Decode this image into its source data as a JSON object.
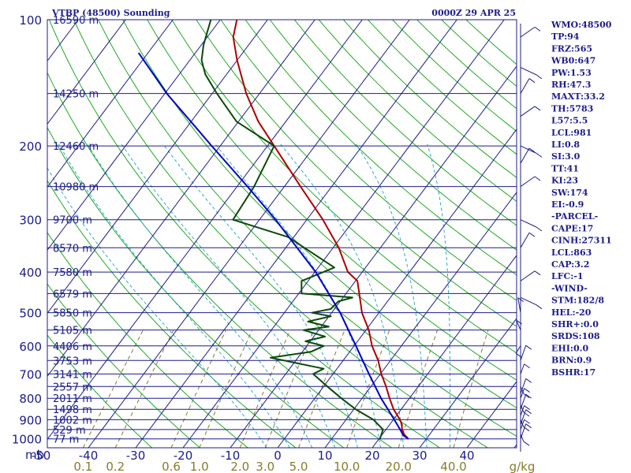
{
  "chart_data": {
    "type": "line",
    "title": "VTBP (48500) Sounding",
    "time": "0000Z 29 APR 25",
    "pressure_axis": {
      "unit": "mb",
      "ticks": [
        100,
        200,
        300,
        400,
        500,
        600,
        700,
        800,
        900,
        1000
      ],
      "range": [
        100,
        1050
      ],
      "scale": "log"
    },
    "height_labels": [
      {
        "text": "16590 m",
        "p": 100
      },
      {
        "text": "14250 m",
        "p": 150
      },
      {
        "text": "12460 m",
        "p": 200
      },
      {
        "text": "10980 m",
        "p": 250
      },
      {
        "text": "9700 m",
        "p": 300
      },
      {
        "text": "8570 m",
        "p": 350
      },
      {
        "text": "7580 m",
        "p": 400
      },
      {
        "text": "6579 m",
        "p": 450
      },
      {
        "text": "5850 m",
        "p": 500
      },
      {
        "text": "5105 m",
        "p": 550
      },
      {
        "text": "4406 m",
        "p": 600
      },
      {
        "text": "3753 m",
        "p": 650
      },
      {
        "text": "3141 m",
        "p": 700
      },
      {
        "text": "2557 m",
        "p": 750
      },
      {
        "text": "2011 m",
        "p": 800
      },
      {
        "text": "1498 m",
        "p": 850
      },
      {
        "text": "1002 m",
        "p": 900
      },
      {
        "text": "529 m",
        "p": 950
      },
      {
        "text": "77 m",
        "p": 1000
      }
    ],
    "temperature_axis": {
      "unit": "°C",
      "ticks": [
        -50,
        -40,
        -30,
        -20,
        -10,
        0,
        10,
        20,
        30,
        40
      ],
      "range": [
        -50,
        50
      ]
    },
    "mixing_ratio_axis": {
      "unit": "g/kg",
      "ticks": [
        "0.1",
        "0.2",
        "0.6",
        "1.0",
        "2.0",
        "3.0",
        "5.0",
        "10.0",
        "20.0",
        "40.0"
      ],
      "end_label": "g/kg"
    },
    "series": [
      {
        "name": "temperature",
        "color": "#b00000",
        "points": [
          {
            "p": 1000,
            "t": 26.2
          },
          {
            "p": 975,
            "t": 24.6
          },
          {
            "p": 950,
            "t": 23.4
          },
          {
            "p": 925,
            "t": 22.6
          },
          {
            "p": 900,
            "t": 21.4
          },
          {
            "p": 850,
            "t": 18.4
          },
          {
            "p": 800,
            "t": 15.8
          },
          {
            "p": 750,
            "t": 13.2
          },
          {
            "p": 700,
            "t": 10.2
          },
          {
            "p": 650,
            "t": 7.4
          },
          {
            "p": 600,
            "t": 3.8
          },
          {
            "p": 550,
            "t": 0.6
          },
          {
            "p": 500,
            "t": -3.6
          },
          {
            "p": 450,
            "t": -7.2
          },
          {
            "p": 420,
            "t": -9.6
          },
          {
            "p": 400,
            "t": -13.0
          },
          {
            "p": 350,
            "t": -18.8
          },
          {
            "p": 300,
            "t": -26.6
          },
          {
            "p": 250,
            "t": -36.6
          },
          {
            "p": 200,
            "t": -48.6
          },
          {
            "p": 175,
            "t": -55.8
          },
          {
            "p": 150,
            "t": -62.8
          },
          {
            "p": 125,
            "t": -70.0
          },
          {
            "p": 110,
            "t": -74.5
          },
          {
            "p": 100,
            "t": -76.5
          }
        ]
      },
      {
        "name": "dewpoint",
        "color": "#0a4a0a",
        "points": [
          {
            "p": 1000,
            "t": 20.2
          },
          {
            "p": 975,
            "t": 19.8
          },
          {
            "p": 950,
            "t": 19.4
          },
          {
            "p": 925,
            "t": 17.6
          },
          {
            "p": 900,
            "t": 15.8
          },
          {
            "p": 850,
            "t": 10.4
          },
          {
            "p": 800,
            "t": 5.6
          },
          {
            "p": 750,
            "t": 0.8
          },
          {
            "p": 700,
            "t": -4.2
          },
          {
            "p": 680,
            "t": -2.8
          },
          {
            "p": 640,
            "t": -15.8
          },
          {
            "p": 620,
            "t": -8.2
          },
          {
            "p": 600,
            "t": -6.4
          },
          {
            "p": 585,
            "t": -11.0
          },
          {
            "p": 570,
            "t": -7.6
          },
          {
            "p": 550,
            "t": -13.2
          },
          {
            "p": 540,
            "t": -8.4
          },
          {
            "p": 525,
            "t": -13.6
          },
          {
            "p": 510,
            "t": -9.6
          },
          {
            "p": 500,
            "t": -14.2
          },
          {
            "p": 490,
            "t": -10.8
          },
          {
            "p": 470,
            "t": -10.4
          },
          {
            "p": 460,
            "t": -8.0
          },
          {
            "p": 450,
            "t": -19.4
          },
          {
            "p": 420,
            "t": -21.4
          },
          {
            "p": 410,
            "t": -19.8
          },
          {
            "p": 390,
            "t": -16.6
          },
          {
            "p": 330,
            "t": -31.2
          },
          {
            "p": 300,
            "t": -45.6
          },
          {
            "p": 250,
            "t": -46.4
          },
          {
            "p": 200,
            "t": -48.6
          },
          {
            "p": 175,
            "t": -60.4
          },
          {
            "p": 150,
            "t": -69.0
          },
          {
            "p": 135,
            "t": -74.5
          },
          {
            "p": 125,
            "t": -77.5
          },
          {
            "p": 115,
            "t": -79.5
          },
          {
            "p": 100,
            "t": -82.0
          }
        ]
      },
      {
        "name": "parcel",
        "color": "#0000c8",
        "points": [
          {
            "p": 1000,
            "t": 26.2
          },
          {
            "p": 981,
            "t": 24.6
          },
          {
            "p": 950,
            "t": 23.0
          },
          {
            "p": 900,
            "t": 20.2
          },
          {
            "p": 850,
            "t": 17.2
          },
          {
            "p": 800,
            "t": 14.0
          },
          {
            "p": 700,
            "t": 7.6
          },
          {
            "p": 600,
            "t": 0.4
          },
          {
            "p": 500,
            "t": -8.2
          },
          {
            "p": 400,
            "t": -19.8
          },
          {
            "p": 300,
            "t": -36.6
          },
          {
            "p": 250,
            "t": -47.8
          },
          {
            "p": 200,
            "t": -61.8
          },
          {
            "p": 150,
            "t": -79.6
          },
          {
            "p": 120,
            "t": -92.0
          }
        ]
      }
    ],
    "grid": true
  },
  "indices": [
    "WMO:48500",
    "TP:94",
    "FRZ:565",
    "WB0:647",
    "PW:1.53",
    "RH:47.3",
    "MAXT:33.2",
    "TH:5783",
    "L57:5.5",
    "LCL:981",
    "LI:0.8",
    "SI:3.0",
    "TT:41",
    "KI:23",
    "SW:174",
    "EI:-0.9",
    "-PARCEL-",
    "CAPE:17",
    "CINH:27311",
    "LCL:863",
    "CAP:3.2",
    "LFC:-1",
    "-WIND-",
    "STM:182/8",
    "HEL:-20",
    "SHR+:0.0",
    "SRDS:108",
    "EHI:0.0",
    "BRN:0.9",
    "BSHR:17"
  ],
  "colors": {
    "frame": "#1c1c8c",
    "isobar": "#1c1c8c",
    "isotherm": "#1c1c8c",
    "dry_adiabat": "#22aa22",
    "moist_adiabat": "#33aacc",
    "mixing_ratio": "#8a7a2a",
    "wind_barb": "#1c1c8c"
  }
}
